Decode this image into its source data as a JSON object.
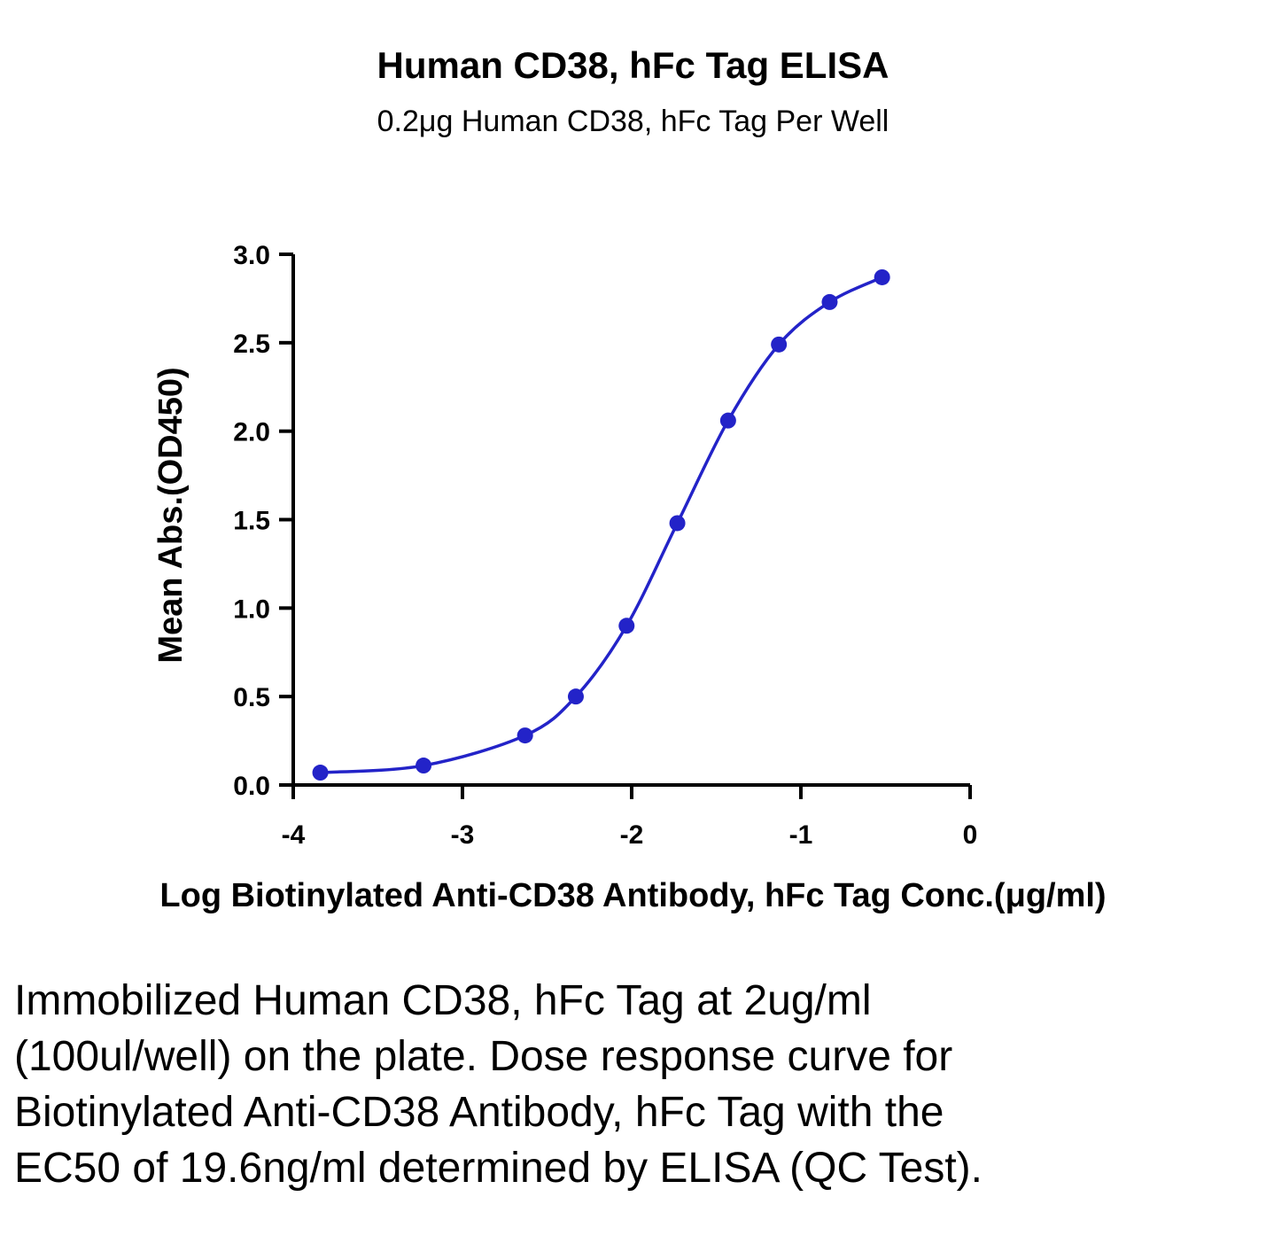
{
  "chart_data": {
    "type": "line",
    "title": "Human CD38, hFc Tag ELISA",
    "subtitle": "0.2μg Human CD38, hFc Tag Per Well",
    "xlabel": "Log Biotinylated Anti-CD38 Antibody, hFc Tag Conc.(μg/ml)",
    "ylabel": "Mean Abs.(OD450)",
    "xlim": [
      -4,
      0
    ],
    "ylim": [
      0,
      3.0
    ],
    "x_ticks": [
      "-4",
      "-3",
      "-2",
      "-1",
      "0"
    ],
    "y_ticks": [
      "0.0",
      "0.5",
      "1.0",
      "1.5",
      "2.0",
      "2.5",
      "3.0"
    ],
    "grid": false,
    "series": [
      {
        "color": "#2323c8",
        "x": [
          -3.84,
          -3.23,
          -2.63,
          -2.33,
          -2.03,
          -1.73,
          -1.43,
          -1.13,
          -0.83,
          -0.52
        ],
        "y": [
          0.07,
          0.11,
          0.28,
          0.5,
          0.9,
          1.48,
          2.06,
          2.49,
          2.73,
          2.87
        ]
      }
    ]
  },
  "caption": "Immobilized Human CD38, hFc Tag at 2ug/ml (100ul/well) on the plate. Dose response curve for Biotinylated Anti-CD38 Antibody, hFc Tag with the EC50 of 19.6ng/ml determined by ELISA (QC Test)."
}
